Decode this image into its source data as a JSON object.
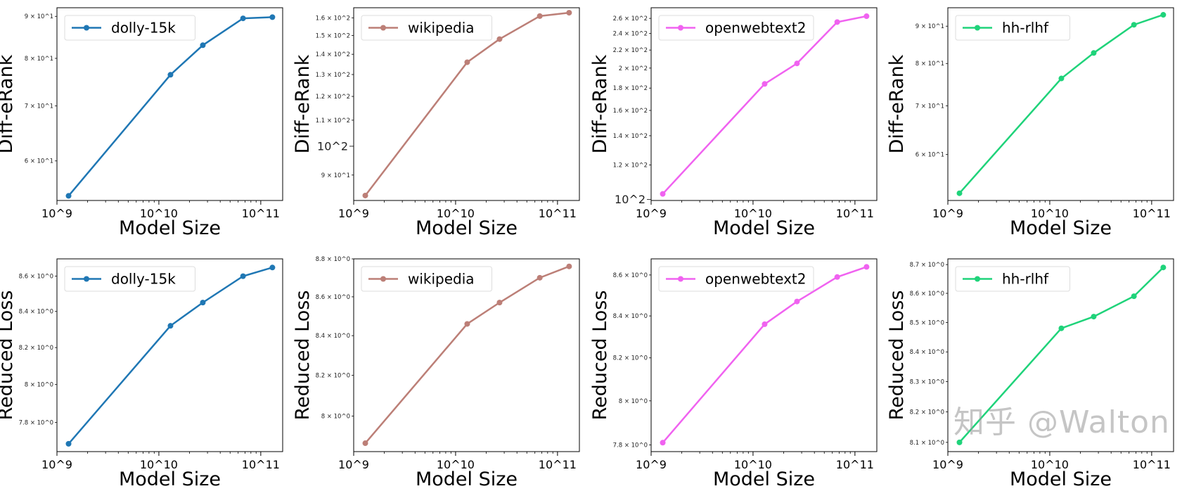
{
  "chart_data": [
    {
      "type": "line",
      "scale": {
        "x": "log",
        "y": "log"
      },
      "xlabel": "Model Size",
      "ylabel": "Diff-eRank",
      "legend": "top-left",
      "grid": false,
      "x": [
        1300000000.0,
        13000000000.0,
        27000000000.0,
        67000000000.0,
        130000000000.0
      ],
      "series": [
        {
          "name": "dolly-15k",
          "color": "#1f77b4",
          "values": [
            54.4,
            76.4,
            83.0,
            89.5,
            89.8
          ]
        }
      ],
      "xlim": [
        1000000000.0,
        164000000000.0
      ],
      "ylim": [
        53.7,
        92.2
      ],
      "xticks": [
        {
          "v": 1000000000.0,
          "label": "10^9"
        },
        {
          "v": 10000000000.0,
          "label": "10^10"
        },
        {
          "v": 100000000000.0,
          "label": "10^11"
        }
      ],
      "yticks": [
        {
          "v": 60,
          "label": "6 × 10^1"
        },
        {
          "v": 70,
          "label": "7 × 10^1"
        },
        {
          "v": 80,
          "label": "8 × 10^1"
        },
        {
          "v": 90,
          "label": "9 × 10^1"
        }
      ]
    },
    {
      "type": "line",
      "scale": {
        "x": "log",
        "y": "log"
      },
      "xlabel": "Model Size",
      "ylabel": "Diff-eRank",
      "legend": "top-left",
      "grid": false,
      "x": [
        1300000000.0,
        13000000000.0,
        27000000000.0,
        67000000000.0,
        130000000000.0
      ],
      "series": [
        {
          "name": "wikipedia",
          "color": "#bc7f77",
          "values": [
            83.5,
            136,
            148,
            161,
            163
          ]
        }
      ],
      "xlim": [
        1000000000.0,
        164000000000.0
      ],
      "ylim": [
        82,
        166
      ],
      "xticks": [
        {
          "v": 1000000000.0,
          "label": "10^9"
        },
        {
          "v": 10000000000.0,
          "label": "10^10"
        },
        {
          "v": 100000000000.0,
          "label": "10^11"
        }
      ],
      "yticks": [
        {
          "v": 90,
          "label": "9 × 10^1"
        },
        {
          "v": 100,
          "label": "10^2",
          "major": true
        },
        {
          "v": 110,
          "label": "1.1 × 10^2"
        },
        {
          "v": 120,
          "label": "1.2 × 10^2"
        },
        {
          "v": 130,
          "label": "1.3 × 10^2"
        },
        {
          "v": 140,
          "label": "1.4 × 10^2"
        },
        {
          "v": 150,
          "label": "1.5 × 10^2"
        },
        {
          "v": 160,
          "label": "1.6 × 10^2"
        }
      ]
    },
    {
      "type": "line",
      "scale": {
        "x": "log",
        "y": "log"
      },
      "xlabel": "Model Size",
      "ylabel": "Diff-eRank",
      "legend": "top-left",
      "grid": false,
      "x": [
        1300000000.0,
        13000000000.0,
        27000000000.0,
        67000000000.0,
        130000000000.0
      ],
      "series": [
        {
          "name": "openwebtext2",
          "color": "#f062f0",
          "values": [
            103,
            184,
            205,
            255,
            263
          ]
        }
      ],
      "xlim": [
        1000000000.0,
        164000000000.0
      ],
      "ylim": [
        99.5,
        275
      ],
      "xticks": [
        {
          "v": 1000000000.0,
          "label": "10^9"
        },
        {
          "v": 10000000000.0,
          "label": "10^10"
        },
        {
          "v": 100000000000.0,
          "label": "10^11"
        }
      ],
      "yticks": [
        {
          "v": 100,
          "label": "10^2",
          "major": true
        },
        {
          "v": 120,
          "label": "1.2 × 10^2"
        },
        {
          "v": 140,
          "label": "1.4 × 10^2"
        },
        {
          "v": 160,
          "label": "1.6 × 10^2"
        },
        {
          "v": 180,
          "label": "1.8 × 10^2"
        },
        {
          "v": 200,
          "label": "2 × 10^2"
        },
        {
          "v": 220,
          "label": "2.2 × 10^2"
        },
        {
          "v": 240,
          "label": "2.4 × 10^2"
        },
        {
          "v": 260,
          "label": "2.6 × 10^2"
        }
      ]
    },
    {
      "type": "line",
      "scale": {
        "x": "log",
        "y": "log"
      },
      "xlabel": "Model Size",
      "ylabel": "Diff-eRank",
      "legend": "top-left",
      "grid": false,
      "x": [
        1300000000.0,
        13000000000.0,
        27000000000.0,
        67000000000.0,
        130000000000.0
      ],
      "series": [
        {
          "name": "hh-rlhf",
          "color": "#1fd37a",
          "values": [
            53.1,
            76.3,
            82.7,
            90.4,
            93.3
          ]
        }
      ],
      "xlim": [
        1000000000.0,
        164000000000.0
      ],
      "ylim": [
        51.9,
        95.4
      ],
      "xticks": [
        {
          "v": 1000000000.0,
          "label": "10^9"
        },
        {
          "v": 10000000000.0,
          "label": "10^10"
        },
        {
          "v": 100000000000.0,
          "label": "10^11"
        }
      ],
      "yticks": [
        {
          "v": 60,
          "label": "6 × 10^1"
        },
        {
          "v": 70,
          "label": "7 × 10^1"
        },
        {
          "v": 80,
          "label": "8 × 10^1"
        },
        {
          "v": 90,
          "label": "9 × 10^1"
        }
      ]
    },
    {
      "type": "line",
      "scale": {
        "x": "log",
        "y": "log"
      },
      "xlabel": "Model Size",
      "ylabel": "Reduced Loss",
      "legend": "top-left",
      "grid": false,
      "x": [
        1300000000.0,
        13000000000.0,
        27000000000.0,
        67000000000.0,
        130000000000.0
      ],
      "series": [
        {
          "name": "dolly-15k",
          "color": "#1f77b4",
          "values": [
            7.69,
            8.32,
            8.45,
            8.6,
            8.65
          ]
        }
      ],
      "xlim": [
        1000000000.0,
        164000000000.0
      ],
      "ylim": [
        7.65,
        8.7
      ],
      "xticks": [
        {
          "v": 1000000000.0,
          "label": "10^9"
        },
        {
          "v": 10000000000.0,
          "label": "10^10"
        },
        {
          "v": 100000000000.0,
          "label": "10^11"
        }
      ],
      "yticks": [
        {
          "v": 7.8,
          "label": "7.8 × 10^0"
        },
        {
          "v": 8.0,
          "label": "8 × 10^0"
        },
        {
          "v": 8.2,
          "label": "8.2 × 10^0"
        },
        {
          "v": 8.4,
          "label": "8.4 × 10^0"
        },
        {
          "v": 8.6,
          "label": "8.6 × 10^0"
        }
      ]
    },
    {
      "type": "line",
      "scale": {
        "x": "log",
        "y": "log"
      },
      "xlabel": "Model Size",
      "ylabel": "Reduced Loss",
      "legend": "top-left",
      "grid": false,
      "x": [
        1300000000.0,
        13000000000.0,
        27000000000.0,
        67000000000.0,
        130000000000.0
      ],
      "series": [
        {
          "name": "wikipedia",
          "color": "#bc7f77",
          "values": [
            7.87,
            8.46,
            8.57,
            8.7,
            8.76
          ]
        }
      ],
      "xlim": [
        1000000000.0,
        164000000000.0
      ],
      "ylim": [
        7.83,
        8.8
      ],
      "xticks": [
        {
          "v": 1000000000.0,
          "label": "10^9"
        },
        {
          "v": 10000000000.0,
          "label": "10^10"
        },
        {
          "v": 100000000000.0,
          "label": "10^11"
        }
      ],
      "yticks": [
        {
          "v": 8.0,
          "label": "8 × 10^0"
        },
        {
          "v": 8.2,
          "label": "8.2 × 10^0"
        },
        {
          "v": 8.4,
          "label": "8.4 × 10^0"
        },
        {
          "v": 8.6,
          "label": "8.6 × 10^0"
        },
        {
          "v": 8.8,
          "label": "8.8 × 10^0"
        }
      ]
    },
    {
      "type": "line",
      "scale": {
        "x": "log",
        "y": "log"
      },
      "xlabel": "Model Size",
      "ylabel": "Reduced Loss",
      "legend": "top-left",
      "grid": false,
      "x": [
        1300000000.0,
        13000000000.0,
        27000000000.0,
        67000000000.0,
        130000000000.0
      ],
      "series": [
        {
          "name": "openwebtext2",
          "color": "#f062f0",
          "values": [
            7.81,
            8.36,
            8.47,
            8.59,
            8.64
          ]
        }
      ],
      "xlim": [
        1000000000.0,
        164000000000.0
      ],
      "ylim": [
        7.77,
        8.68
      ],
      "xticks": [
        {
          "v": 1000000000.0,
          "label": "10^9"
        },
        {
          "v": 10000000000.0,
          "label": "10^10"
        },
        {
          "v": 100000000000.0,
          "label": "10^11"
        }
      ],
      "yticks": [
        {
          "v": 7.8,
          "label": "7.8 × 10^0"
        },
        {
          "v": 8.0,
          "label": "8 × 10^0"
        },
        {
          "v": 8.2,
          "label": "8.2 × 10^0"
        },
        {
          "v": 8.4,
          "label": "8.4 × 10^0"
        },
        {
          "v": 8.6,
          "label": "8.6 × 10^0"
        }
      ]
    },
    {
      "type": "line",
      "scale": {
        "x": "log",
        "y": "log"
      },
      "xlabel": "Model Size",
      "ylabel": "Reduced Loss",
      "legend": "top-left",
      "grid": false,
      "x": [
        1300000000.0,
        13000000000.0,
        27000000000.0,
        67000000000.0,
        130000000000.0
      ],
      "series": [
        {
          "name": "hh-rlhf",
          "color": "#1fd37a",
          "values": [
            8.1,
            8.48,
            8.52,
            8.59,
            8.69
          ]
        }
      ],
      "xlim": [
        1000000000.0,
        164000000000.0
      ],
      "ylim": [
        8.07,
        8.72
      ],
      "xticks": [
        {
          "v": 1000000000.0,
          "label": "10^9"
        },
        {
          "v": 10000000000.0,
          "label": "10^10"
        },
        {
          "v": 100000000000.0,
          "label": "10^11"
        }
      ],
      "yticks": [
        {
          "v": 8.1,
          "label": "8.1 × 10^0"
        },
        {
          "v": 8.2,
          "label": "8.2 × 10^0"
        },
        {
          "v": 8.3,
          "label": "8.3 × 10^0"
        },
        {
          "v": 8.4,
          "label": "8.4 × 10^0"
        },
        {
          "v": 8.5,
          "label": "8.5 × 10^0"
        },
        {
          "v": 8.6,
          "label": "8.6 × 10^0"
        },
        {
          "v": 8.7,
          "label": "8.7 × 10^0"
        }
      ]
    }
  ],
  "watermark": "知乎 @Walton"
}
